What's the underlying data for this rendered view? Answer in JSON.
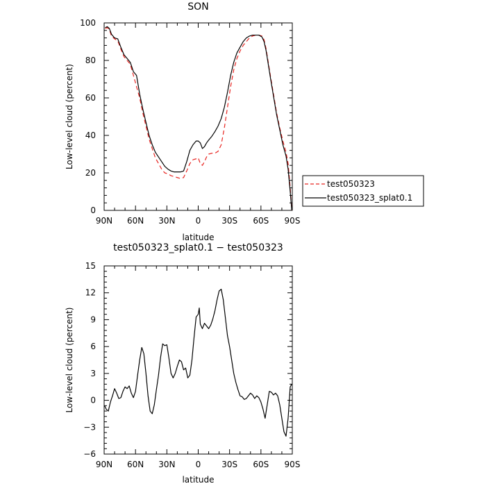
{
  "chart_data": [
    {
      "type": "line",
      "title": "SON",
      "xlabel": "latitude",
      "ylabel": "Low-level cloud (percent)",
      "xlim": [
        90,
        -90
      ],
      "ylim": [
        0,
        100
      ],
      "x_ticks": [
        90,
        60,
        30,
        0,
        -30,
        -60,
        -90
      ],
      "x_tick_labels": [
        "90N",
        "60N",
        "30N",
        "0",
        "30S",
        "60S",
        "90S"
      ],
      "y_ticks": [
        0,
        20,
        40,
        60,
        80,
        100
      ],
      "y_tick_labels": [
        "0",
        "20",
        "40",
        "60",
        "80",
        "100"
      ],
      "legend_position": "right",
      "series": [
        {
          "name": "test050323",
          "color": "#e8231f",
          "dash": "dashed",
          "x": [
            89,
            87,
            85,
            83,
            80,
            77,
            74,
            71,
            68,
            65,
            62,
            59,
            56,
            53,
            50,
            47,
            44,
            41,
            38,
            35,
            32,
            29,
            26,
            23,
            20,
            17,
            14,
            11,
            8,
            5,
            2,
            0,
            -2,
            -4,
            -6,
            -8,
            -10,
            -13,
            -16,
            -19,
            -22,
            -25,
            -28,
            -31,
            -34,
            -37,
            -40,
            -43,
            -46,
            -49,
            -52,
            -55,
            -58,
            -61,
            -63,
            -65,
            -67,
            -69,
            -72,
            -75,
            -78,
            -81,
            -84,
            -86,
            -88,
            -89.5
          ],
          "values": [
            97,
            97.5,
            96.5,
            93,
            91.5,
            90.5,
            86,
            82,
            80,
            78,
            72,
            66,
            60,
            52,
            45,
            38,
            33,
            28,
            25,
            22,
            20,
            19.5,
            18.5,
            18,
            17.5,
            17,
            17.5,
            21,
            25,
            27,
            27.5,
            28,
            25,
            24,
            26,
            28.5,
            30,
            30.5,
            30.5,
            31.5,
            35,
            44,
            55,
            66,
            75,
            81,
            85,
            88,
            90,
            92,
            93,
            93.5,
            93.5,
            93,
            91,
            86,
            79,
            72,
            62,
            52,
            44,
            37,
            31,
            25,
            12,
            0
          ]
        },
        {
          "name": "test050323_splat0.1",
          "color": "#000000",
          "dash": "solid",
          "x": [
            89,
            87,
            85,
            83,
            80,
            77,
            74,
            71,
            68,
            65,
            62,
            59,
            56,
            53,
            50,
            47,
            44,
            41,
            38,
            35,
            32,
            29,
            26,
            23,
            20,
            17,
            14,
            11,
            8,
            5,
            2,
            0,
            -2,
            -4,
            -6,
            -8,
            -10,
            -13,
            -16,
            -19,
            -22,
            -25,
            -28,
            -31,
            -34,
            -37,
            -40,
            -43,
            -46,
            -49,
            -52,
            -55,
            -58,
            -61,
            -63,
            -65,
            -67,
            -69,
            -72,
            -75,
            -78,
            -81,
            -84,
            -86,
            -88,
            -89.5
          ],
          "values": [
            97.5,
            98,
            97,
            94,
            92,
            91.5,
            87,
            83,
            81,
            79,
            74,
            72,
            62,
            54,
            47,
            40,
            35,
            31,
            28.5,
            26,
            23.5,
            22,
            21,
            20.5,
            20.5,
            20.5,
            21,
            26,
            32,
            35,
            37,
            37,
            36,
            33,
            34,
            36,
            37.5,
            39.5,
            42,
            45,
            49,
            55,
            63,
            72,
            79,
            84,
            87,
            90,
            92,
            93,
            93.5,
            93.5,
            93.5,
            92.5,
            90,
            85,
            78,
            71,
            61,
            51,
            43,
            35,
            29,
            22,
            10,
            0
          ]
        }
      ]
    },
    {
      "type": "line",
      "title": "test050323_splat0.1 − test050323",
      "xlabel": "latitude",
      "ylabel": "Low-level cloud (percent)",
      "xlim": [
        90,
        -90
      ],
      "ylim": [
        -6,
        15
      ],
      "x_ticks": [
        90,
        60,
        30,
        0,
        -30,
        -60,
        -90
      ],
      "x_tick_labels": [
        "90N",
        "60N",
        "30N",
        "0",
        "30S",
        "60S",
        "90S"
      ],
      "y_ticks": [
        -6,
        -3,
        0,
        3,
        6,
        9,
        12,
        15
      ],
      "y_tick_labels": [
        "−6",
        "−3",
        "0",
        "3",
        "6",
        "9",
        "12",
        "15"
      ],
      "series": [
        {
          "color": "#000000",
          "dash": "solid",
          "x": [
            89.5,
            88,
            86,
            84,
            82,
            80,
            78,
            76,
            74,
            72,
            70,
            68,
            66,
            64,
            62,
            60,
            58,
            56,
            54,
            52,
            50,
            48,
            46,
            44,
            42,
            40,
            38,
            36,
            34,
            32,
            30,
            28,
            26,
            24,
            22,
            20,
            18,
            16,
            14,
            12,
            10,
            8,
            6,
            4,
            2,
            0,
            -1,
            -2,
            -4,
            -6,
            -8,
            -10,
            -12,
            -14,
            -16,
            -18,
            -20,
            -22,
            -24,
            -26,
            -28,
            -30,
            -32,
            -34,
            -36,
            -38,
            -40,
            -42,
            -44,
            -46,
            -48,
            -50,
            -52,
            -54,
            -56,
            -58,
            -60,
            -62,
            -64,
            -66,
            -68,
            -70,
            -72,
            -74,
            -76,
            -78,
            -80,
            -82,
            -84,
            -86,
            -88,
            -89.5
          ],
          "values": [
            -0.6,
            -1.0,
            -1.2,
            -0.2,
            0.5,
            1.3,
            0.8,
            0.2,
            0.3,
            1.0,
            1.5,
            1.3,
            1.6,
            0.8,
            0.3,
            1.0,
            2.8,
            4.5,
            5.9,
            5.2,
            3.0,
            0.5,
            -1.2,
            -1.5,
            -0.5,
            1.2,
            2.8,
            4.8,
            6.3,
            6.1,
            6.2,
            4.7,
            3.0,
            2.5,
            3.0,
            3.8,
            4.5,
            4.3,
            3.4,
            3.6,
            2.5,
            2.8,
            4.5,
            7.0,
            9.3,
            9.6,
            10.3,
            8.5,
            8.0,
            8.6,
            8.3,
            8.0,
            8.4,
            9.1,
            10.0,
            11.2,
            12.2,
            12.4,
            11.2,
            9.2,
            7.2,
            6.0,
            4.5,
            3.0,
            2.0,
            1.2,
            0.5,
            0.4,
            0.1,
            0.2,
            0.5,
            0.8,
            0.6,
            0.2,
            0.5,
            0.3,
            -0.2,
            -1.0,
            -2.0,
            -0.5,
            1.0,
            0.9,
            0.6,
            0.8,
            0.5,
            -0.5,
            -2.0,
            -3.5,
            -4.0,
            -2.0,
            1.5,
            1.8
          ]
        }
      ]
    }
  ]
}
